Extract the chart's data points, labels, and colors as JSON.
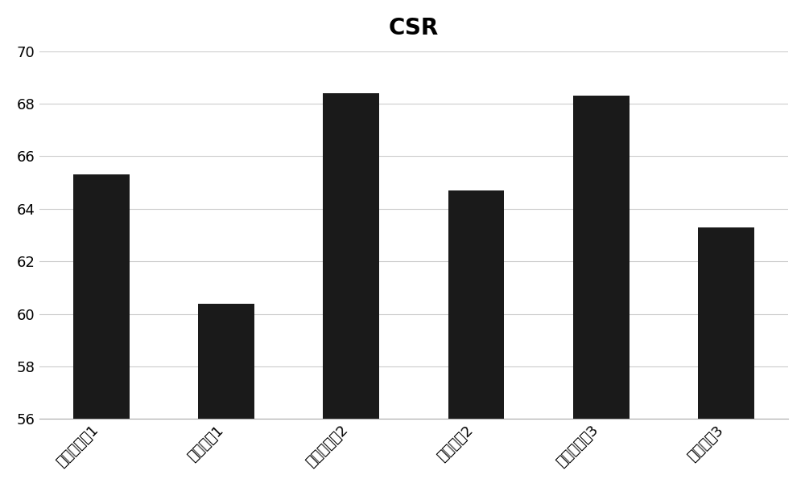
{
  "title": "CSR",
  "categories": [
    "应用实施例1",
    "应用实施例1",
    "应用实施例2",
    "应用实施例2",
    "应用实施例3",
    "应用实施例3"
  ],
  "categories_display": [
    "应用实施例1",
    "应用对比1",
    "应用实施例2",
    "应用对比2",
    "应用实施例3",
    "应用对比3"
  ],
  "values": [
    65.3,
    60.4,
    68.4,
    64.7,
    68.3,
    63.3
  ],
  "bar_color": "#1a1a1a",
  "ylim_min": 56,
  "ylim_max": 70,
  "yticks": [
    56,
    58,
    60,
    62,
    64,
    66,
    68,
    70
  ],
  "title_fontsize": 20,
  "tick_fontsize": 13,
  "background_color": "#ffffff",
  "grid_color": "#cccccc",
  "bar_width": 0.45
}
